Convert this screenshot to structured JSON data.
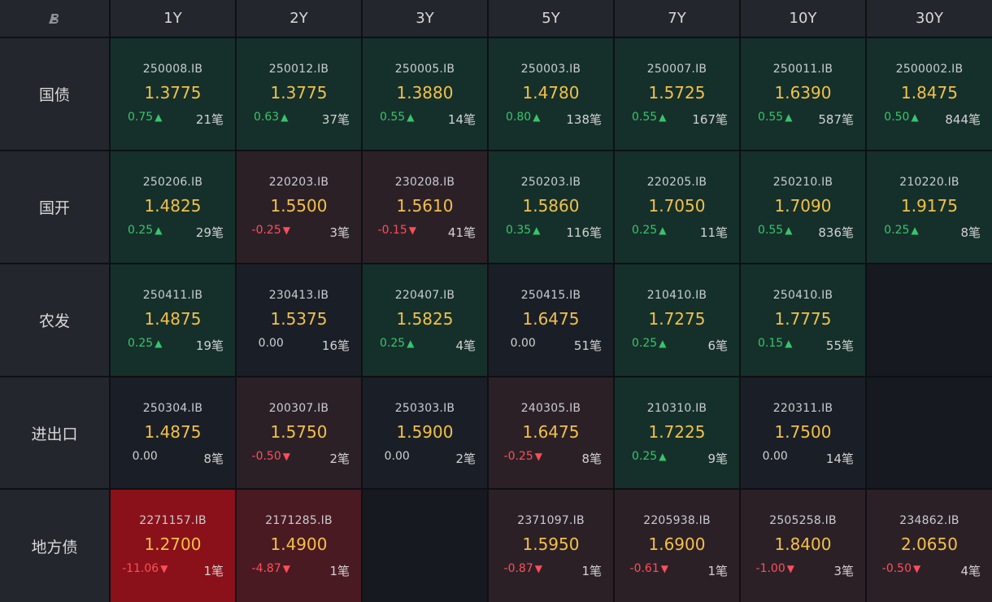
{
  "logo_icon": "bond-logo-icon",
  "headers": [
    "1Y",
    "2Y",
    "3Y",
    "5Y",
    "7Y",
    "10Y",
    "30Y"
  ],
  "rows": [
    {
      "label": "国债",
      "cells": [
        {
          "code": "250008.IB",
          "yield": "1.3775",
          "change": "0.75",
          "dir": "up",
          "count": "21笔",
          "bg": "green"
        },
        {
          "code": "250012.IB",
          "yield": "1.3775",
          "change": "0.63",
          "dir": "up",
          "count": "37笔",
          "bg": "green"
        },
        {
          "code": "250005.IB",
          "yield": "1.3880",
          "change": "0.55",
          "dir": "up",
          "count": "14笔",
          "bg": "green"
        },
        {
          "code": "250003.IB",
          "yield": "1.4780",
          "change": "0.80",
          "dir": "up",
          "count": "138笔",
          "bg": "green"
        },
        {
          "code": "250007.IB",
          "yield": "1.5725",
          "change": "0.55",
          "dir": "up",
          "count": "167笔",
          "bg": "green"
        },
        {
          "code": "250011.IB",
          "yield": "1.6390",
          "change": "0.55",
          "dir": "up",
          "count": "587笔",
          "bg": "green"
        },
        {
          "code": "2500002.IB",
          "yield": "1.8475",
          "change": "0.50",
          "dir": "up",
          "count": "844笔",
          "bg": "green"
        }
      ]
    },
    {
      "label": "国开",
      "cells": [
        {
          "code": "250206.IB",
          "yield": "1.4825",
          "change": "0.25",
          "dir": "up",
          "count": "29笔",
          "bg": "green"
        },
        {
          "code": "220203.IB",
          "yield": "1.5500",
          "change": "-0.25",
          "dir": "down",
          "count": "3笔",
          "bg": "red"
        },
        {
          "code": "230208.IB",
          "yield": "1.5610",
          "change": "-0.15",
          "dir": "down",
          "count": "41笔",
          "bg": "red"
        },
        {
          "code": "250203.IB",
          "yield": "1.5860",
          "change": "0.35",
          "dir": "up",
          "count": "116笔",
          "bg": "green"
        },
        {
          "code": "220205.IB",
          "yield": "1.7050",
          "change": "0.25",
          "dir": "up",
          "count": "11笔",
          "bg": "green"
        },
        {
          "code": "250210.IB",
          "yield": "1.7090",
          "change": "0.55",
          "dir": "up",
          "count": "836笔",
          "bg": "green"
        },
        {
          "code": "210220.IB",
          "yield": "1.9175",
          "change": "0.25",
          "dir": "up",
          "count": "8笔",
          "bg": "green"
        }
      ]
    },
    {
      "label": "农发",
      "cells": [
        {
          "code": "250411.IB",
          "yield": "1.4875",
          "change": "0.25",
          "dir": "up",
          "count": "19笔",
          "bg": "green"
        },
        {
          "code": "230413.IB",
          "yield": "1.5375",
          "change": "0.00",
          "dir": "flat",
          "count": "16笔",
          "bg": "neutral"
        },
        {
          "code": "220407.IB",
          "yield": "1.5825",
          "change": "0.25",
          "dir": "up",
          "count": "4笔",
          "bg": "green"
        },
        {
          "code": "250415.IB",
          "yield": "1.6475",
          "change": "0.00",
          "dir": "flat",
          "count": "51笔",
          "bg": "neutral"
        },
        {
          "code": "210410.IB",
          "yield": "1.7275",
          "change": "0.25",
          "dir": "up",
          "count": "6笔",
          "bg": "green"
        },
        {
          "code": "250410.IB",
          "yield": "1.7775",
          "change": "0.15",
          "dir": "up",
          "count": "55笔",
          "bg": "green"
        },
        null
      ]
    },
    {
      "label": "进出口",
      "cells": [
        {
          "code": "250304.IB",
          "yield": "1.4875",
          "change": "0.00",
          "dir": "flat",
          "count": "8笔",
          "bg": "neutral"
        },
        {
          "code": "200307.IB",
          "yield": "1.5750",
          "change": "-0.50",
          "dir": "down",
          "count": "2笔",
          "bg": "red"
        },
        {
          "code": "250303.IB",
          "yield": "1.5900",
          "change": "0.00",
          "dir": "flat",
          "count": "2笔",
          "bg": "neutral"
        },
        {
          "code": "240305.IB",
          "yield": "1.6475",
          "change": "-0.25",
          "dir": "down",
          "count": "8笔",
          "bg": "red"
        },
        {
          "code": "210310.IB",
          "yield": "1.7225",
          "change": "0.25",
          "dir": "up",
          "count": "9笔",
          "bg": "green"
        },
        {
          "code": "220311.IB",
          "yield": "1.7500",
          "change": "0.00",
          "dir": "flat",
          "count": "14笔",
          "bg": "neutral"
        },
        null
      ]
    },
    {
      "label": "地方债",
      "cells": [
        {
          "code": "2271157.IB",
          "yield": "1.2700",
          "change": "-11.06",
          "dir": "down",
          "count": "1笔",
          "bg": "strong"
        },
        {
          "code": "2171285.IB",
          "yield": "1.4900",
          "change": "-4.87",
          "dir": "down",
          "count": "1笔",
          "bg": "mid"
        },
        null,
        {
          "code": "2371097.IB",
          "yield": "1.5950",
          "change": "-0.87",
          "dir": "down",
          "count": "1笔",
          "bg": "red"
        },
        {
          "code": "2205938.IB",
          "yield": "1.6900",
          "change": "-0.61",
          "dir": "down",
          "count": "1笔",
          "bg": "red"
        },
        {
          "code": "2505258.IB",
          "yield": "1.8400",
          "change": "-1.00",
          "dir": "down",
          "count": "3笔",
          "bg": "red"
        },
        {
          "code": "234862.IB",
          "yield": "2.0650",
          "change": "-0.50",
          "dir": "down",
          "count": "4笔",
          "bg": "red"
        }
      ]
    }
  ]
}
